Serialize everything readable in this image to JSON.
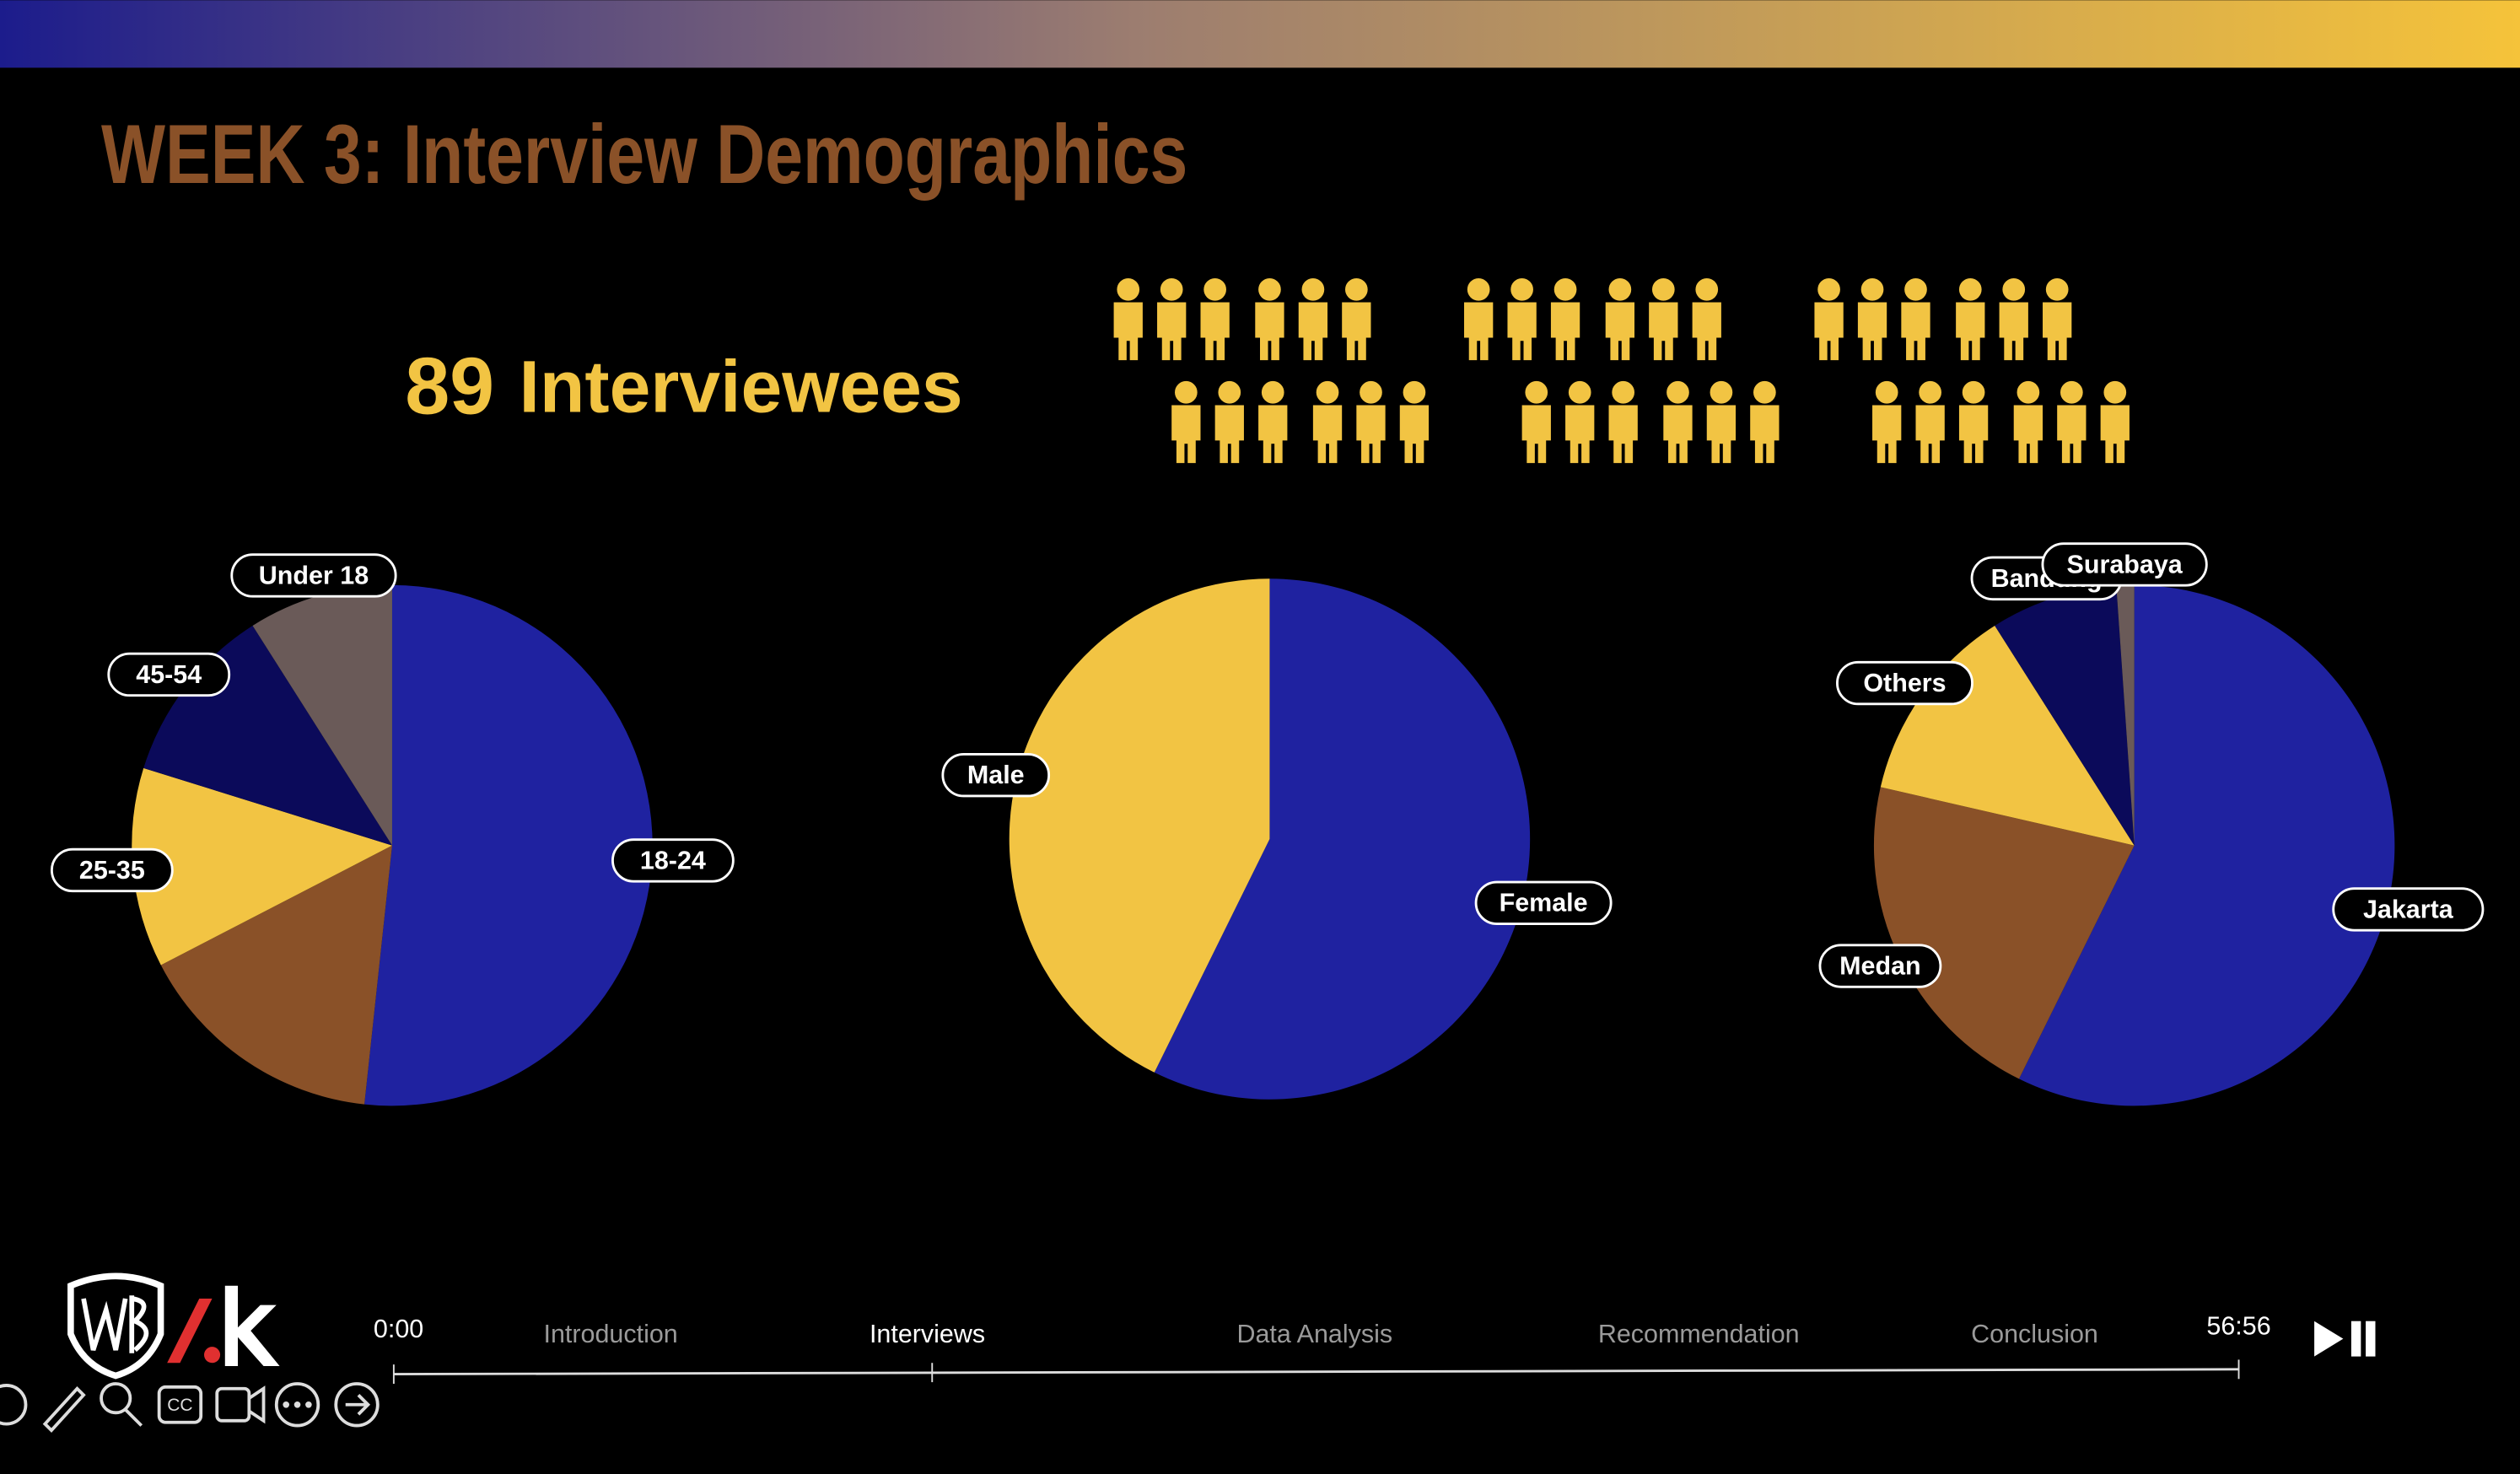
{
  "header": {
    "title": "WEEK 3: Interview Demographics"
  },
  "headline": {
    "count": 89,
    "label": "Interviewees"
  },
  "chart_data": [
    {
      "type": "pie",
      "categories": [
        "18-24",
        null,
        "25-35",
        "45-54",
        "Under 18"
      ],
      "values": [
        51.7,
        15.7,
        12.4,
        11.2,
        9.0
      ],
      "colors": [
        "#1f22a0",
        "#8a5128",
        "#f2c443",
        "#0b0a5a",
        "#6a5a58"
      ]
    },
    {
      "type": "pie",
      "categories": [
        "Female",
        "Male"
      ],
      "values": [
        57.3,
        42.7
      ],
      "colors": [
        "#1f22a0",
        "#f2c443"
      ]
    },
    {
      "type": "pie",
      "categories": [
        "Jakarta",
        "Medan",
        "Others",
        "Bandung",
        "Surabaya"
      ],
      "values": [
        57.3,
        21.3,
        12.4,
        7.9,
        1.1
      ],
      "colors": [
        "#1f22a0",
        "#8a5128",
        "#f2c443",
        "#0b0a5a",
        "#6a5a58"
      ]
    }
  ],
  "player": {
    "current_time": "0:00",
    "total_time": "56:56",
    "chapters": [
      "Introduction",
      "Interviews",
      "Data Analysis",
      "Recommendation",
      "Conclusion"
    ],
    "active_chapter": 1
  }
}
